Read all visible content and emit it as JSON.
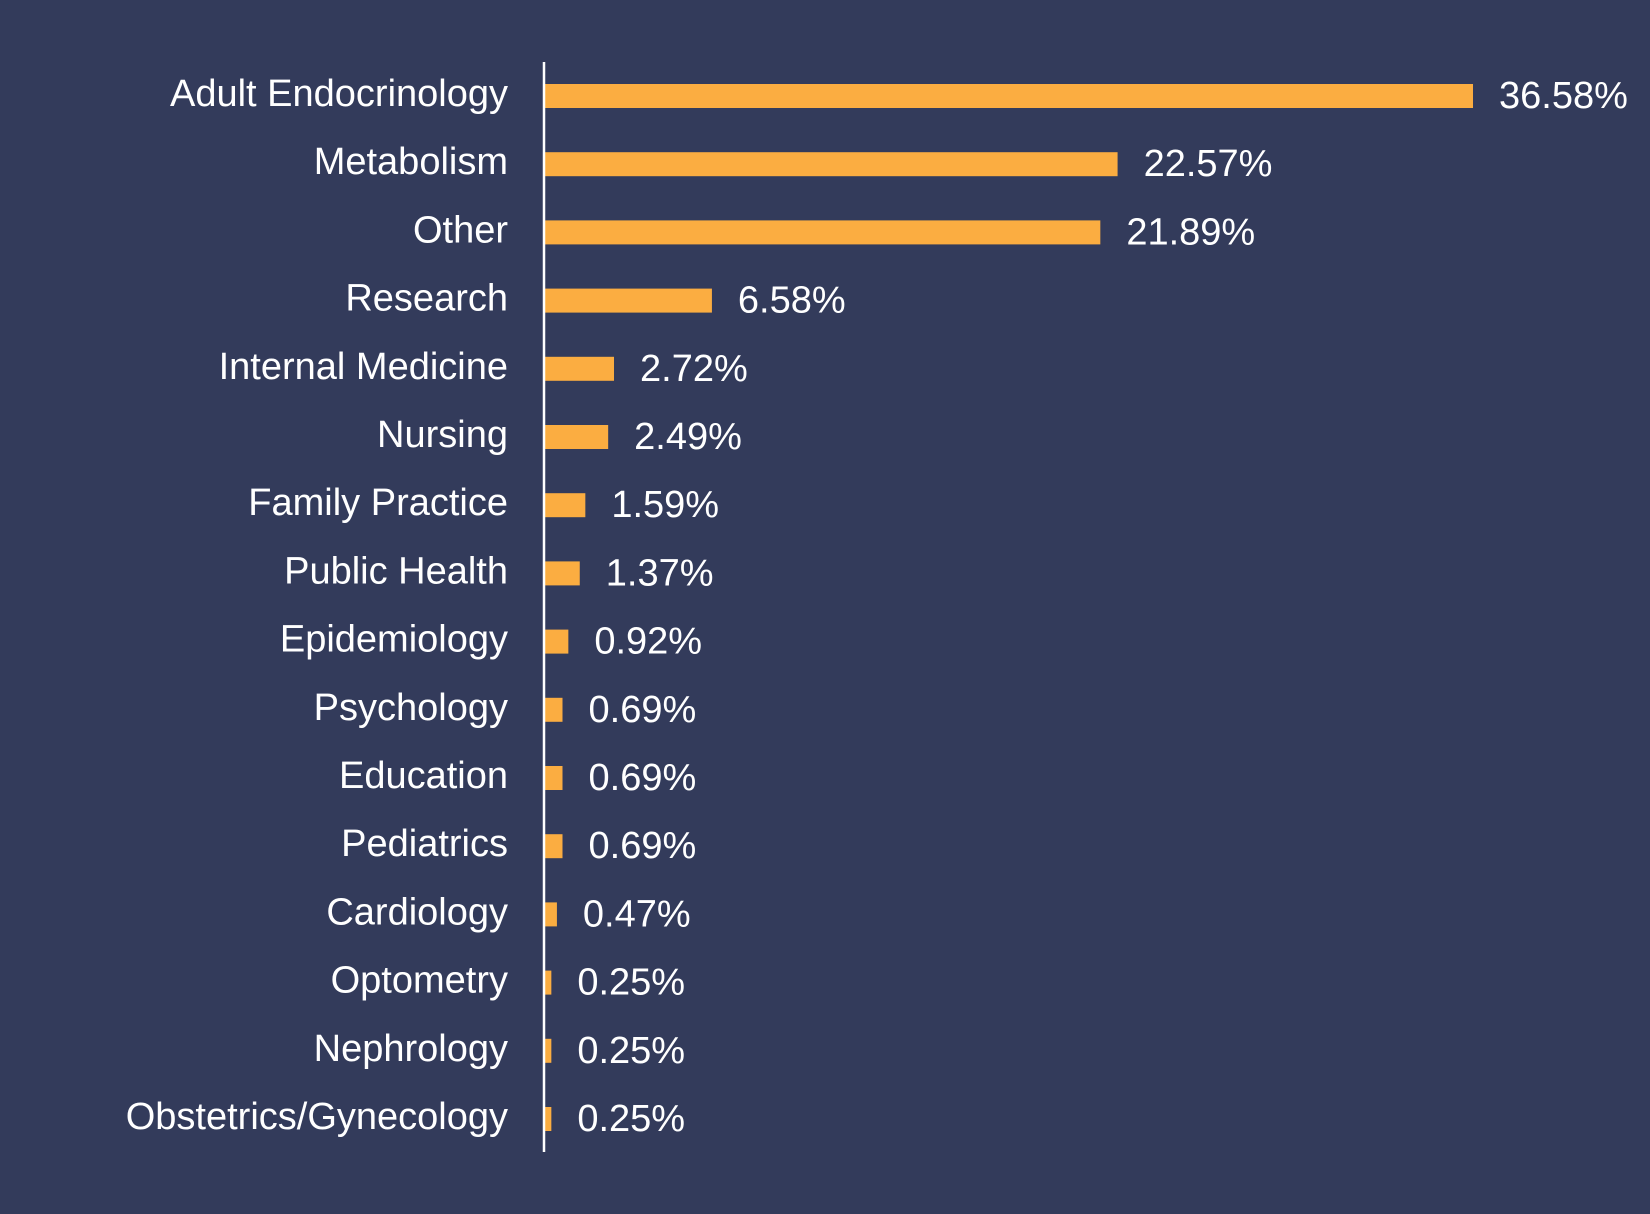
{
  "chart_data": {
    "type": "bar",
    "orientation": "horizontal",
    "title": "",
    "xlabel": "",
    "ylabel": "",
    "categories": [
      "Adult Endocrinology",
      "Metabolism",
      "Other",
      "Research",
      "Internal Medicine",
      "Nursing",
      "Family Practice",
      "Public Health",
      "Epidemiology",
      "Psychology",
      "Education",
      "Pediatrics",
      "Cardiology",
      "Optometry",
      "Nephrology",
      "Obstetrics/Gynecology"
    ],
    "values": [
      36.58,
      22.57,
      21.89,
      6.58,
      2.72,
      2.49,
      1.59,
      1.37,
      0.92,
      0.69,
      0.69,
      0.69,
      0.47,
      0.25,
      0.25,
      0.25
    ],
    "data_labels": [
      "36.58%",
      "22.57%",
      "21.89%",
      "6.58%",
      "2.72%",
      "2.49%",
      "1.59%",
      "1.37%",
      "0.92%",
      "0.69%",
      "0.69%",
      "0.69%",
      "0.47%",
      "0.25%",
      "0.25%",
      "0.25%"
    ],
    "xlim": [
      0,
      36.58
    ],
    "grid": false,
    "legend": "none",
    "colors": {
      "background": "#333b5b",
      "bar": "#fbad41",
      "axis": "#ffffff",
      "text": "#ffffff"
    }
  }
}
